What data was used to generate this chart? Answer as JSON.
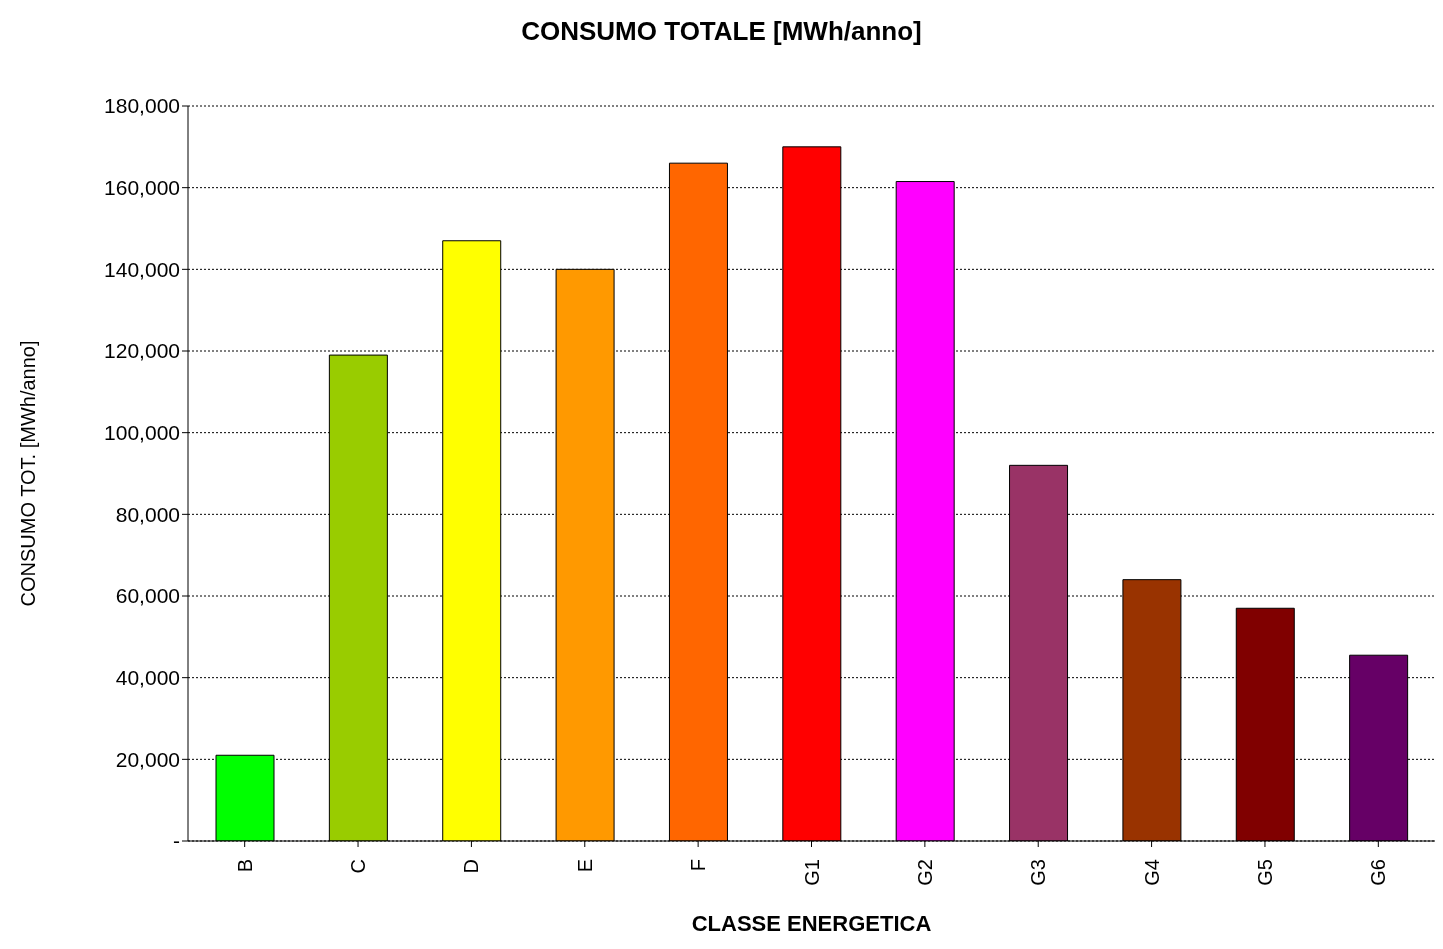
{
  "chart_data": {
    "type": "bar",
    "title": "CONSUMO TOTALE [MWh/anno]",
    "xlabel": "CLASSE ENERGETICA",
    "ylabel": "CONSUMO TOT. [MWh/anno]",
    "categories": [
      "B",
      "C",
      "D",
      "E",
      "F",
      "G1",
      "G2",
      "G3",
      "G4",
      "G5",
      "G6"
    ],
    "values": [
      21000,
      119000,
      147000,
      140000,
      166000,
      170000,
      161500,
      92000,
      64000,
      57000,
      45500
    ],
    "colors": [
      "#00ff00",
      "#99cc00",
      "#ffff00",
      "#ff9900",
      "#ff6600",
      "#ff0000",
      "#ff00ff",
      "#993366",
      "#993300",
      "#800000",
      "#660066"
    ],
    "ylim": [
      0,
      180000
    ],
    "yticks": [
      {
        "value": 0,
        "label": "-"
      },
      {
        "value": 20000,
        "label": "20,000"
      },
      {
        "value": 40000,
        "label": "40,000"
      },
      {
        "value": 60000,
        "label": "60,000"
      },
      {
        "value": 80000,
        "label": "80,000"
      },
      {
        "value": 100000,
        "label": "100,000"
      },
      {
        "value": 120000,
        "label": "120,000"
      },
      {
        "value": 140000,
        "label": "140,000"
      },
      {
        "value": 160000,
        "label": "160,000"
      },
      {
        "value": 180000,
        "label": "180,000"
      }
    ],
    "grid": "y",
    "line_style": "dotted"
  }
}
